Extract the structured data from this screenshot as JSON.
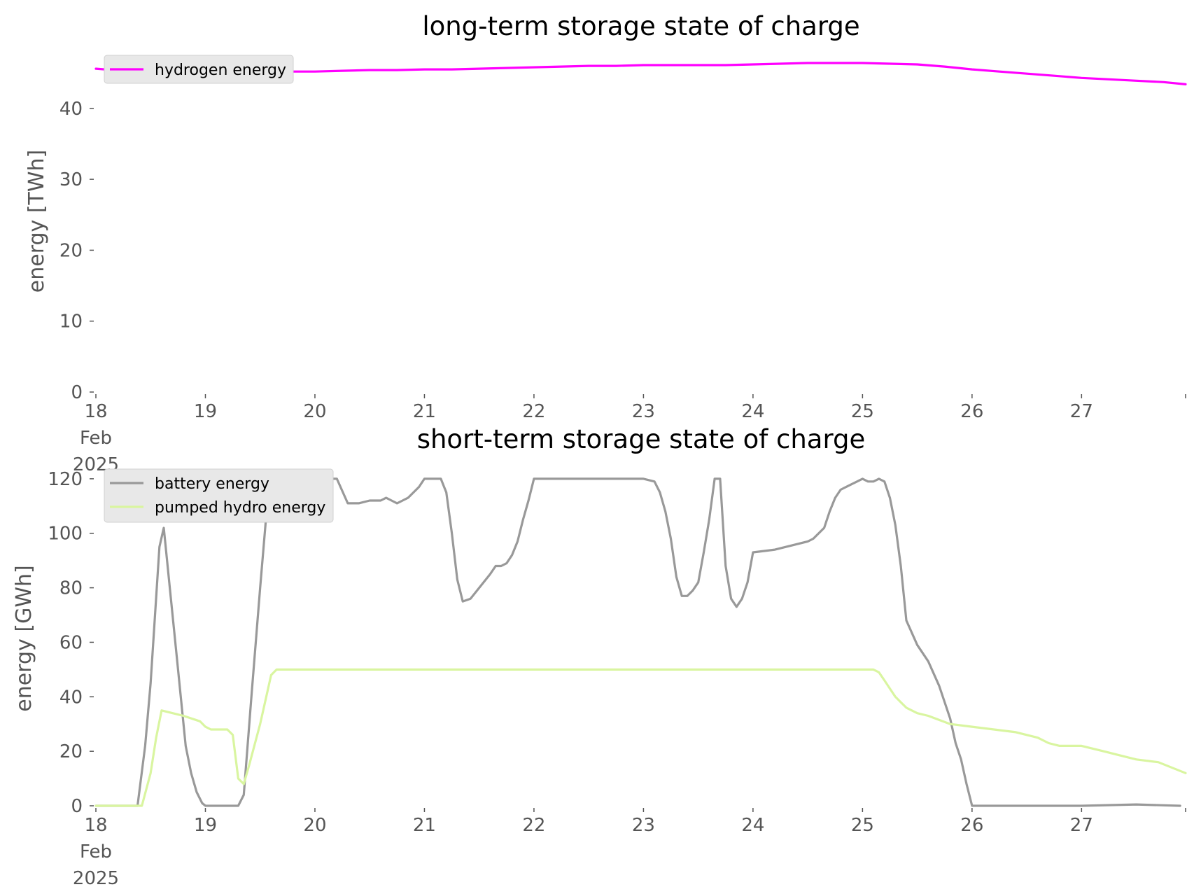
{
  "chart_data": [
    {
      "type": "line",
      "title": "long-term storage state of charge",
      "ylabel": "energy [TWh]",
      "xlabel": "",
      "ylim": [
        0,
        46.4
      ],
      "yticks": [
        0,
        10,
        20,
        30,
        40
      ],
      "xlim": [
        18,
        27.95
      ],
      "xticks": [
        {
          "value": 18,
          "lines": [
            "18",
            "Feb",
            "2025"
          ]
        },
        {
          "value": 19,
          "lines": [
            "19"
          ]
        },
        {
          "value": 20,
          "lines": [
            "20"
          ]
        },
        {
          "value": 21,
          "lines": [
            "21"
          ]
        },
        {
          "value": 22,
          "lines": [
            "22"
          ]
        },
        {
          "value": 23,
          "lines": [
            "23"
          ]
        },
        {
          "value": 24,
          "lines": [
            "24"
          ]
        },
        {
          "value": 25,
          "lines": [
            "25"
          ]
        },
        {
          "value": 26,
          "lines": [
            "26"
          ]
        },
        {
          "value": 27,
          "lines": [
            "27"
          ]
        }
      ],
      "grid": false,
      "legend_position": "top-left",
      "series": [
        {
          "name": "hydrogen energy",
          "color": "#ff00ff",
          "x": [
            18.0,
            18.25,
            18.5,
            18.75,
            19.0,
            19.25,
            19.5,
            19.75,
            20.0,
            20.25,
            20.5,
            20.75,
            21.0,
            21.25,
            21.5,
            21.75,
            22.0,
            22.25,
            22.5,
            22.75,
            23.0,
            23.25,
            23.5,
            23.75,
            24.0,
            24.25,
            24.5,
            24.75,
            25.0,
            25.25,
            25.5,
            25.75,
            26.0,
            26.25,
            26.5,
            26.75,
            27.0,
            27.25,
            27.5,
            27.75,
            27.95
          ],
          "y": [
            45.6,
            45.3,
            45.2,
            45.2,
            45.2,
            45.2,
            45.2,
            45.2,
            45.2,
            45.3,
            45.4,
            45.4,
            45.5,
            45.5,
            45.6,
            45.7,
            45.8,
            45.9,
            46.0,
            46.0,
            46.1,
            46.1,
            46.1,
            46.1,
            46.2,
            46.3,
            46.4,
            46.4,
            46.4,
            46.3,
            46.2,
            45.9,
            45.5,
            45.2,
            44.9,
            44.6,
            44.3,
            44.1,
            43.9,
            43.7,
            43.4
          ]
        }
      ]
    },
    {
      "type": "line",
      "title": "short-term storage state of charge",
      "ylabel": "energy [GWh]",
      "xlabel": "",
      "ylim": [
        0,
        121
      ],
      "yticks": [
        0,
        20,
        40,
        60,
        80,
        100,
        120
      ],
      "xlim": [
        18,
        27.95
      ],
      "xticks": [
        {
          "value": 18,
          "lines": [
            "18",
            "Feb",
            "2025"
          ]
        },
        {
          "value": 19,
          "lines": [
            "19"
          ]
        },
        {
          "value": 20,
          "lines": [
            "20"
          ]
        },
        {
          "value": 21,
          "lines": [
            "21"
          ]
        },
        {
          "value": 22,
          "lines": [
            "22"
          ]
        },
        {
          "value": 23,
          "lines": [
            "23"
          ]
        },
        {
          "value": 24,
          "lines": [
            "24"
          ]
        },
        {
          "value": 25,
          "lines": [
            "25"
          ]
        },
        {
          "value": 26,
          "lines": [
            "26"
          ]
        },
        {
          "value": 27,
          "lines": [
            "27"
          ]
        }
      ],
      "grid": false,
      "legend_position": "top-left",
      "series": [
        {
          "name": "battery energy",
          "color": "#999999",
          "x": [
            18.0,
            18.38,
            18.45,
            18.5,
            18.58,
            18.62,
            18.68,
            18.75,
            18.82,
            18.87,
            18.92,
            18.97,
            19.0,
            19.1,
            19.2,
            19.3,
            19.35,
            19.42,
            19.5,
            19.58,
            19.62,
            19.68,
            19.72,
            19.8,
            19.87,
            19.92,
            20.0,
            20.1,
            20.2,
            20.3,
            20.4,
            20.5,
            20.6,
            20.65,
            20.7,
            20.75,
            20.8,
            20.85,
            20.9,
            20.95,
            21.0,
            21.1,
            21.15,
            21.2,
            21.25,
            21.3,
            21.35,
            21.42,
            21.5,
            21.6,
            21.65,
            21.7,
            21.75,
            21.8,
            21.85,
            21.9,
            21.95,
            22.0,
            22.5,
            23.0,
            23.1,
            23.15,
            23.2,
            23.25,
            23.3,
            23.35,
            23.4,
            23.45,
            23.5,
            23.55,
            23.6,
            23.65,
            23.7,
            23.75,
            23.8,
            23.85,
            23.9,
            23.95,
            24.0,
            24.2,
            24.4,
            24.5,
            24.55,
            24.6,
            24.65,
            24.7,
            24.75,
            24.8,
            24.85,
            24.9,
            24.95,
            25.0,
            25.05,
            25.1,
            25.15,
            25.2,
            25.25,
            25.3,
            25.35,
            25.4,
            25.5,
            25.6,
            25.7,
            25.8,
            25.85,
            25.9,
            25.95,
            26.0,
            26.5,
            27.0,
            27.5,
            27.9
          ],
          "y": [
            0,
            0,
            22,
            45,
            95,
            102,
            78,
            50,
            22,
            12,
            5,
            1,
            0,
            0,
            0,
            0,
            4,
            40,
            80,
            118,
            120,
            114,
            110,
            110,
            112,
            118,
            120,
            120,
            120,
            111,
            111,
            112,
            112,
            113,
            112,
            111,
            112,
            113,
            115,
            117,
            120,
            120,
            120,
            115,
            100,
            83,
            75,
            76,
            80,
            85,
            88,
            88,
            89,
            92,
            97,
            105,
            112,
            120,
            120,
            120,
            119,
            115,
            108,
            98,
            84,
            77,
            77,
            79,
            82,
            93,
            105,
            120,
            120,
            88,
            76,
            73,
            76,
            82,
            93,
            94,
            96,
            97,
            98,
            100,
            102,
            108,
            113,
            116,
            117,
            118,
            119,
            120,
            119,
            119,
            120,
            119,
            113,
            103,
            88,
            68,
            59,
            53,
            44,
            32,
            23,
            17,
            8,
            0,
            0,
            0,
            0.5,
            0
          ]
        },
        {
          "name": "pumped hydro energy",
          "color": "#d9f5a0",
          "x": [
            18.0,
            18.42,
            18.5,
            18.55,
            18.6,
            18.8,
            18.95,
            19.0,
            19.05,
            19.1,
            19.2,
            19.25,
            19.3,
            19.35,
            19.4,
            19.5,
            19.6,
            19.65,
            20.0,
            21.0,
            22.0,
            23.0,
            24.0,
            25.0,
            25.1,
            25.15,
            25.2,
            25.25,
            25.3,
            25.35,
            25.4,
            25.5,
            25.6,
            25.8,
            26.0,
            26.2,
            26.4,
            26.6,
            26.7,
            26.8,
            27.0,
            27.2,
            27.4,
            27.5,
            27.7,
            27.95
          ],
          "y": [
            0,
            0,
            12,
            25,
            35,
            33,
            31,
            29,
            28,
            28,
            28,
            26,
            10,
            8,
            15,
            30,
            48,
            50,
            50,
            50,
            50,
            50,
            50,
            50,
            50,
            49,
            46,
            43,
            40,
            38,
            36,
            34,
            33,
            30,
            29,
            28,
            27,
            25,
            23,
            22,
            22,
            20,
            18,
            17,
            16,
            12
          ]
        }
      ]
    }
  ]
}
